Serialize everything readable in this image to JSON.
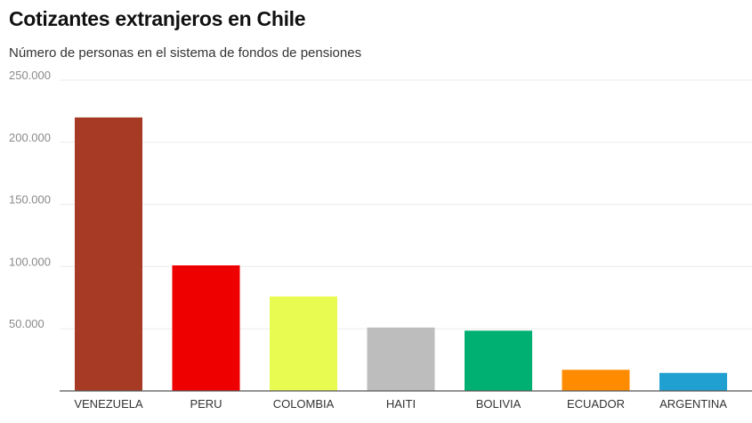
{
  "chart_data": {
    "type": "bar",
    "title": "Cotizantes extranjeros en Chile",
    "subtitle": "Número de personas en el sistema de fondos de pensiones",
    "xlabel": "",
    "ylabel": "",
    "categories": [
      "VENEZUELA",
      "PERU",
      "COLOMBIA",
      "HAITI",
      "BOLIVIA",
      "ECUADOR",
      "ARGENTINA"
    ],
    "values": [
      220000,
      101000,
      76000,
      51000,
      48500,
      17000,
      14500
    ],
    "colors": [
      "#a63a24",
      "#ee0000",
      "#e8fb50",
      "#bdbdbd",
      "#00b072",
      "#ff8c00",
      "#20a0d0"
    ],
    "ylim": [
      0,
      250000
    ],
    "yticks": [
      0,
      50000,
      100000,
      150000,
      200000,
      250000
    ],
    "ytick_labels": [
      "",
      "50.000",
      "100.000",
      "150.000",
      "200.000",
      "250.000"
    ],
    "grid": true,
    "legend": "none"
  }
}
